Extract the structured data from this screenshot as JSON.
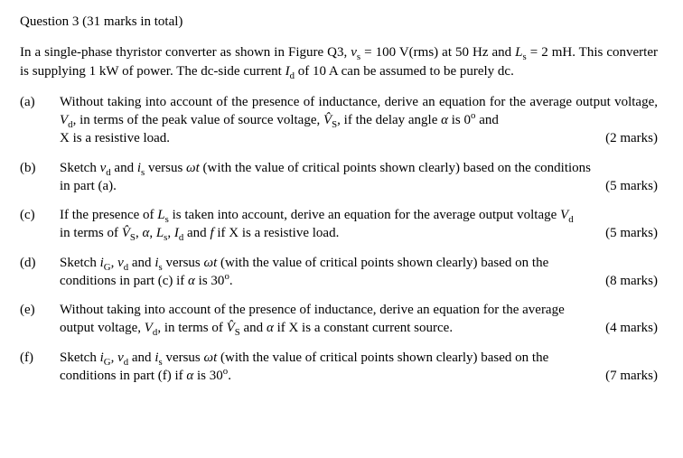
{
  "title": "Question 3 (31 marks in total)",
  "intro": "In a single-phase thyristor converter as shown in Figure Q3, v_s = 100 V(rms) at 50 Hz and L_s = 2 mH. This converter is supplying 1 kW of power. The dc-side current I_d of 10 A can be assumed to be purely dc.",
  "parts": [
    {
      "label": "(a)",
      "text": "Without taking into account of the presence of inductance, derive an equation for the average output voltage, V_d, in terms of the peak value of source voltage, V̂_S, if the delay angle α is 0° and X is a resistive load.",
      "marks": "(2 marks)"
    },
    {
      "label": "(b)",
      "text": "Sketch v_d and i_s versus ωt (with the value of critical points shown clearly) based on the conditions in part (a).",
      "marks": "(5 marks)"
    },
    {
      "label": "(c)",
      "text": "If the presence of L_s is taken into account, derive an equation for the average output voltage V_d in terms of V̂_S, α, L_s, I_d and f if X is a resistive load.",
      "marks": "(5 marks)"
    },
    {
      "label": "(d)",
      "text": "Sketch i_G, v_d and i_s versus ωt (with the value of critical points shown clearly) based on the conditions in part (c) if α is 30°.",
      "marks": "(8 marks)"
    },
    {
      "label": "(e)",
      "text": "Without taking into account of the presence of inductance, derive an equation for the average output voltage, V_d, in terms of V̂_S and α if X is a constant current source.",
      "marks": "(4 marks)"
    },
    {
      "label": "(f)",
      "text": "Sketch i_G, v_d and i_s versus ωt (with the value of critical points shown clearly) based on the conditions in part (f) if α is 30°.",
      "marks": "(7 marks)"
    }
  ]
}
